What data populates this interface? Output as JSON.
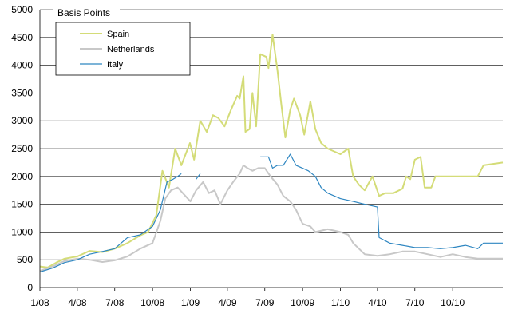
{
  "chart_data": {
    "type": "line",
    "title": "",
    "xlabel": "",
    "ylabel": "Basis Points",
    "ylim": [
      0,
      5000
    ],
    "yticks": [
      0,
      500,
      1000,
      1500,
      2000,
      2500,
      3000,
      3500,
      4000,
      4500,
      5000
    ],
    "xlim": [
      "2008-01-01",
      "2011-01-31"
    ],
    "xticks": [
      {
        "date": "2008-01-01",
        "label": "1/08"
      },
      {
        "date": "2008-04-01",
        "label": "4/08"
      },
      {
        "date": "2008-07-01",
        "label": "7/08"
      },
      {
        "date": "2008-10-01",
        "label": "10/08"
      },
      {
        "date": "2009-01-01",
        "label": "1/09"
      },
      {
        "date": "2009-04-01",
        "label": "4/09"
      },
      {
        "date": "2009-07-01",
        "label": "7/09"
      },
      {
        "date": "2009-10-01",
        "label": "10/09"
      },
      {
        "date": "2010-01-01",
        "label": "1/10"
      },
      {
        "date": "2010-04-01",
        "label": "4/10"
      },
      {
        "date": "2010-07-01",
        "label": "7/10"
      },
      {
        "date": "2010-10-01",
        "label": "10/10"
      }
    ],
    "grid": "horizontal",
    "legend_position": "top-left",
    "series": [
      {
        "name": "Spain",
        "color": "#d4dc78",
        "points": [
          [
            "2008-01-01",
            380
          ],
          [
            "2008-01-20",
            360
          ],
          [
            "2008-02-10",
            450
          ],
          [
            "2008-03-01",
            520
          ],
          [
            "2008-04-01",
            560
          ],
          [
            "2008-05-01",
            660
          ],
          [
            "2008-06-01",
            640
          ],
          [
            "2008-07-01",
            700
          ],
          [
            "2008-08-01",
            800
          ],
          [
            "2008-09-01",
            940
          ],
          [
            "2008-09-20",
            1000
          ],
          [
            "2008-10-10",
            1300
          ],
          [
            "2008-10-25",
            2100
          ],
          [
            "2008-11-10",
            1800
          ],
          [
            "2008-11-25",
            2500
          ],
          [
            "2008-12-10",
            2200
          ],
          [
            "2008-12-31",
            2600
          ],
          [
            "2009-01-10",
            2300
          ],
          [
            "2009-01-25",
            3000
          ],
          [
            "2009-02-10",
            2800
          ],
          [
            "2009-02-25",
            3100
          ],
          [
            "2009-03-10",
            3050
          ],
          [
            "2009-03-25",
            2900
          ],
          [
            "2009-04-10",
            3200
          ],
          [
            "2009-04-25",
            3450
          ],
          [
            "2009-05-01",
            3400
          ],
          [
            "2009-05-10",
            3800
          ],
          [
            "2009-05-15",
            2800
          ],
          [
            "2009-05-25",
            2850
          ],
          [
            "2009-06-01",
            3500
          ],
          [
            "2009-06-10",
            2900
          ],
          [
            "2009-06-20",
            4200
          ],
          [
            "2009-07-05",
            4150
          ],
          [
            "2009-07-10",
            3950
          ],
          [
            "2009-07-20",
            4550
          ],
          [
            "2009-08-01",
            3900
          ],
          [
            "2009-08-10",
            3300
          ],
          [
            "2009-08-20",
            2700
          ],
          [
            "2009-09-01",
            3200
          ],
          [
            "2009-09-10",
            3400
          ],
          [
            "2009-09-25",
            3100
          ],
          [
            "2009-10-05",
            2750
          ],
          [
            "2009-10-20",
            3350
          ],
          [
            "2009-11-01",
            2850
          ],
          [
            "2009-11-15",
            2600
          ],
          [
            "2009-12-01",
            2500
          ],
          [
            "2010-01-01",
            2400
          ],
          [
            "2010-01-20",
            2500
          ],
          [
            "2010-02-01",
            2000
          ],
          [
            "2010-02-15",
            1850
          ],
          [
            "2010-03-01",
            1750
          ],
          [
            "2010-03-20",
            2000
          ],
          [
            "2010-04-05",
            1650
          ],
          [
            "2010-04-20",
            1700
          ],
          [
            "2010-05-10",
            1700
          ],
          [
            "2010-06-01",
            1780
          ],
          [
            "2010-06-10",
            2000
          ],
          [
            "2010-06-20",
            1950
          ],
          [
            "2010-07-01",
            2300
          ],
          [
            "2010-07-15",
            2350
          ],
          [
            "2010-07-25",
            1800
          ],
          [
            "2010-08-10",
            1800
          ],
          [
            "2010-08-20",
            2000
          ],
          [
            "2010-09-01",
            2000
          ],
          [
            "2010-10-01",
            2000
          ],
          [
            "2010-11-01",
            2000
          ],
          [
            "2010-12-01",
            2000
          ],
          [
            "2010-12-15",
            2200
          ],
          [
            "2011-01-31",
            2250
          ]
        ]
      },
      {
        "name": "Netherlands",
        "color": "#c8c8c8",
        "points": [
          [
            "2008-01-01",
            300
          ],
          [
            "2008-02-01",
            380
          ],
          [
            "2008-03-01",
            480
          ],
          [
            "2008-04-01",
            520
          ],
          [
            "2008-05-01",
            500
          ],
          [
            "2008-06-01",
            460
          ],
          [
            "2008-07-01",
            490
          ],
          [
            "2008-08-01",
            560
          ],
          [
            "2008-09-01",
            700
          ],
          [
            "2008-10-01",
            800
          ],
          [
            "2008-10-20",
            1200
          ],
          [
            "2008-11-01",
            1600
          ],
          [
            "2008-11-15",
            1750
          ],
          [
            "2008-12-01",
            1800
          ],
          [
            "2009-01-01",
            1550
          ],
          [
            "2009-01-15",
            1750
          ],
          [
            "2009-02-01",
            1900
          ],
          [
            "2009-02-15",
            1700
          ],
          [
            "2009-03-01",
            1750
          ],
          [
            "2009-03-15",
            1500
          ],
          [
            "2009-04-01",
            1750
          ],
          [
            "2009-04-15",
            1900
          ],
          [
            "2009-05-01",
            2050
          ],
          [
            "2009-05-10",
            2200
          ],
          [
            "2009-05-20",
            2150
          ],
          [
            "2009-06-01",
            2100
          ],
          [
            "2009-06-15",
            2150
          ],
          [
            "2009-07-01",
            2150
          ],
          [
            "2009-07-15",
            2000
          ],
          [
            "2009-08-01",
            1850
          ],
          [
            "2009-08-15",
            1650
          ],
          [
            "2009-09-01",
            1550
          ],
          [
            "2009-09-15",
            1400
          ],
          [
            "2009-10-01",
            1150
          ],
          [
            "2009-10-20",
            1100
          ],
          [
            "2009-11-01",
            1000
          ],
          [
            "2009-12-01",
            1050
          ],
          [
            "2010-01-01",
            1000
          ],
          [
            "2010-01-20",
            950
          ],
          [
            "2010-02-01",
            800
          ],
          [
            "2010-02-15",
            700
          ],
          [
            "2010-03-01",
            600
          ],
          [
            "2010-04-01",
            570
          ],
          [
            "2010-05-01",
            600
          ],
          [
            "2010-06-01",
            650
          ],
          [
            "2010-07-01",
            650
          ],
          [
            "2010-08-01",
            600
          ],
          [
            "2010-09-01",
            550
          ],
          [
            "2010-10-01",
            600
          ],
          [
            "2010-11-01",
            550
          ],
          [
            "2010-12-01",
            520
          ],
          [
            "2011-01-31",
            520
          ]
        ]
      },
      {
        "name": "Italy",
        "color": "#2e86c1",
        "points": [
          [
            "2008-01-01",
            280
          ],
          [
            "2008-02-01",
            350
          ],
          [
            "2008-03-01",
            450
          ],
          [
            "2008-04-01",
            500
          ],
          [
            "2008-05-01",
            600
          ],
          [
            "2008-06-01",
            650
          ],
          [
            "2008-07-01",
            700
          ],
          [
            "2008-08-01",
            900
          ],
          [
            "2008-09-01",
            950
          ],
          [
            "2008-10-01",
            1100
          ],
          [
            "2008-10-20",
            1400
          ],
          [
            "2008-11-05",
            1900
          ],
          [
            "2008-11-20",
            1950
          ],
          [
            "2008-12-01",
            2000
          ],
          [
            "2008-12-10",
            2050
          ],
          null,
          [
            "2009-01-15",
            1950
          ],
          [
            "2009-01-25",
            2050
          ],
          null,
          [
            "2009-06-20",
            2350
          ],
          [
            "2009-07-10",
            2350
          ],
          [
            "2009-07-20",
            2150
          ],
          [
            "2009-08-01",
            2200
          ],
          [
            "2009-08-15",
            2200
          ],
          [
            "2009-09-01",
            2400
          ],
          [
            "2009-09-15",
            2200
          ],
          [
            "2009-10-15",
            2100
          ],
          [
            "2009-11-01",
            2000
          ],
          [
            "2009-11-15",
            1800
          ],
          [
            "2009-12-01",
            1700
          ],
          [
            "2010-01-01",
            1600
          ],
          [
            "2010-02-01",
            1550
          ],
          [
            "2010-03-01",
            1500
          ],
          [
            "2010-04-01",
            1450
          ],
          [
            "2010-04-05",
            900
          ],
          [
            "2010-05-01",
            800
          ],
          [
            "2010-06-01",
            760
          ],
          [
            "2010-07-01",
            720
          ],
          [
            "2010-08-01",
            720
          ],
          [
            "2010-09-01",
            700
          ],
          [
            "2010-10-01",
            720
          ],
          [
            "2010-11-01",
            760
          ],
          [
            "2010-12-01",
            700
          ],
          [
            "2010-12-15",
            800
          ],
          [
            "2011-01-31",
            800
          ]
        ]
      }
    ]
  }
}
